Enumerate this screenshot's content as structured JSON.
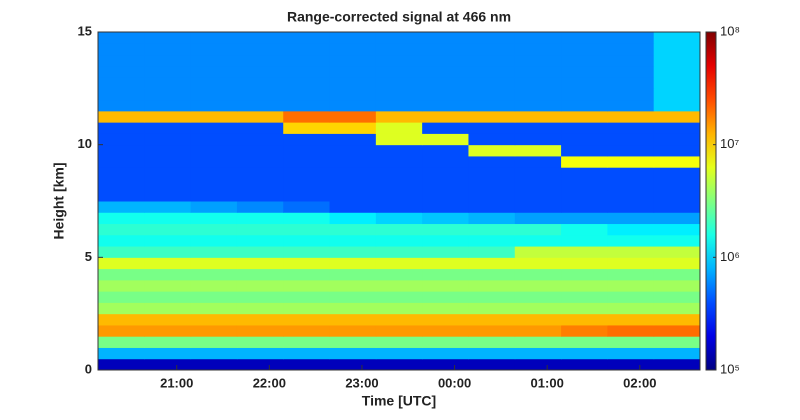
{
  "chart_data": {
    "type": "heatmap",
    "title": "Range-corrected signal at 466 nm",
    "x_label": "Time [UTC]",
    "y_label": "Height [km]",
    "xlim": [
      20.15,
      26.65
    ],
    "xticks": [
      {
        "value": 21,
        "label": "21:00"
      },
      {
        "value": 22,
        "label": "22:00"
      },
      {
        "value": 23,
        "label": "23:00"
      },
      {
        "value": 24,
        "label": "00:00"
      },
      {
        "value": 25,
        "label": "01:00"
      },
      {
        "value": 26,
        "label": "02:00"
      }
    ],
    "ylim": [
      0,
      15
    ],
    "yticks": [
      0,
      5,
      10,
      15
    ],
    "colorscale": "jet",
    "color_log": true,
    "clim": [
      100000.0,
      100000000.0
    ],
    "cticks": [
      {
        "value": 100000.0,
        "label": "10⁵"
      },
      {
        "value": 1000000.0,
        "label": "10⁶"
      },
      {
        "value": 10000000.0,
        "label": "10⁷"
      },
      {
        "value": 100000000.0,
        "label": "10⁸"
      }
    ],
    "x": [
      20.4,
      20.9,
      21.4,
      21.9,
      22.4,
      22.9,
      23.4,
      23.9,
      24.4,
      24.9,
      25.4,
      25.9,
      26.4
    ],
    "y": [
      0.25,
      0.75,
      1.25,
      1.75,
      2.25,
      2.75,
      3.25,
      3.75,
      4.25,
      4.75,
      5.25,
      5.75,
      6.25,
      6.75,
      7.25,
      7.75,
      8.25,
      8.75,
      9.25,
      9.75,
      10.25,
      10.75,
      11.25,
      11.75,
      12.25,
      12.75,
      13.25,
      13.75,
      14.25,
      14.75
    ],
    "z": [
      [
        150000.0,
        150000.0,
        150000.0,
        150000.0,
        150000.0,
        150000.0,
        150000.0,
        150000.0,
        150000.0,
        150000.0,
        150000.0,
        150000.0,
        150000.0
      ],
      [
        800000.0,
        800000.0,
        800000.0,
        800000.0,
        800000.0,
        800000.0,
        800000.0,
        800000.0,
        800000.0,
        800000.0,
        800000.0,
        800000.0,
        800000.0
      ],
      [
        3000000.0,
        3000000.0,
        3000000.0,
        3000000.0,
        3000000.0,
        3000000.0,
        3000000.0,
        3000000.0,
        3000000.0,
        3000000.0,
        3000000.0,
        3000000.0,
        3000000.0
      ],
      [
        15000000.0,
        15000000.0,
        15000000.0,
        15000000.0,
        15000000.0,
        15000000.0,
        15000000.0,
        15000000.0,
        15000000.0,
        15000000.0,
        18000000.0,
        20000000.0,
        20000000.0
      ],
      [
        12000000.0,
        12000000.0,
        12000000.0,
        12000000.0,
        12000000.0,
        12000000.0,
        12000000.0,
        12000000.0,
        12000000.0,
        12000000.0,
        12000000.0,
        12000000.0,
        12000000.0
      ],
      [
        4000000.0,
        4000000.0,
        4000000.0,
        4000000.0,
        4000000.0,
        4000000.0,
        4000000.0,
        4000000.0,
        4000000.0,
        4000000.0,
        4000000.0,
        4000000.0,
        4000000.0
      ],
      [
        3000000.0,
        3000000.0,
        3000000.0,
        3000000.0,
        3000000.0,
        3000000.0,
        3000000.0,
        3000000.0,
        3000000.0,
        3000000.0,
        3000000.0,
        3000000.0,
        3000000.0
      ],
      [
        4000000.0,
        4000000.0,
        4000000.0,
        4000000.0,
        4000000.0,
        4000000.0,
        4000000.0,
        4000000.0,
        4000000.0,
        4000000.0,
        4000000.0,
        4000000.0,
        4000000.0
      ],
      [
        3000000.0,
        3000000.0,
        3000000.0,
        3000000.0,
        3000000.0,
        3000000.0,
        3000000.0,
        3000000.0,
        3000000.0,
        3000000.0,
        3000000.0,
        3000000.0,
        3000000.0
      ],
      [
        6000000.0,
        6000000.0,
        6000000.0,
        6000000.0,
        6000000.0,
        6000000.0,
        6000000.0,
        6000000.0,
        6000000.0,
        6000000.0,
        6000000.0,
        6000000.0,
        6000000.0
      ],
      [
        2000000.0,
        2000000.0,
        2000000.0,
        2000000.0,
        2000000.0,
        2000000.0,
        2000000.0,
        2000000.0,
        2000000.0,
        5000000.0,
        5000000.0,
        5000000.0,
        5000000.0
      ],
      [
        1500000.0,
        1500000.0,
        1500000.0,
        1500000.0,
        1500000.0,
        1500000.0,
        1500000.0,
        1500000.0,
        1500000.0,
        1500000.0,
        1500000.0,
        1500000.0,
        1500000.0
      ],
      [
        1800000.0,
        1800000.0,
        1800000.0,
        1800000.0,
        1800000.0,
        1800000.0,
        1800000.0,
        1800000.0,
        1800000.0,
        1800000.0,
        1500000.0,
        1200000.0,
        1200000.0
      ],
      [
        1500000.0,
        1500000.0,
        1500000.0,
        1500000.0,
        1500000.0,
        1200000.0,
        1000000.0,
        900000.0,
        800000.0,
        700000.0,
        700000.0,
        700000.0,
        700000.0
      ],
      [
        800000.0,
        800000.0,
        700000.0,
        600000.0,
        500000.0,
        400000.0,
        400000.0,
        400000.0,
        400000.0,
        400000.0,
        400000.0,
        400000.0,
        400000.0
      ],
      [
        400000.0,
        400000.0,
        400000.0,
        400000.0,
        400000.0,
        400000.0,
        400000.0,
        400000.0,
        400000.0,
        400000.0,
        400000.0,
        400000.0,
        400000.0
      ],
      [
        400000.0,
        400000.0,
        400000.0,
        400000.0,
        400000.0,
        400000.0,
        400000.0,
        400000.0,
        400000.0,
        400000.0,
        400000.0,
        400000.0,
        400000.0
      ],
      [
        400000.0,
        400000.0,
        400000.0,
        400000.0,
        400000.0,
        400000.0,
        400000.0,
        400000.0,
        400000.0,
        400000.0,
        400000.0,
        400000.0,
        400000.0
      ],
      [
        400000.0,
        400000.0,
        400000.0,
        400000.0,
        400000.0,
        400000.0,
        400000.0,
        400000.0,
        400000.0,
        400000.0,
        7000000.0,
        7000000.0,
        7000000.0
      ],
      [
        400000.0,
        400000.0,
        400000.0,
        400000.0,
        400000.0,
        400000.0,
        400000.0,
        400000.0,
        6000000.0,
        6000000.0,
        400000.0,
        400000.0,
        400000.0
      ],
      [
        400000.0,
        400000.0,
        400000.0,
        400000.0,
        400000.0,
        400000.0,
        6000000.0,
        6000000.0,
        400000.0,
        400000.0,
        400000.0,
        400000.0,
        400000.0
      ],
      [
        400000.0,
        400000.0,
        400000.0,
        400000.0,
        10000000.0,
        10000000.0,
        6000000.0,
        400000.0,
        400000.0,
        400000.0,
        400000.0,
        400000.0,
        400000.0
      ],
      [
        12000000.0,
        12000000.0,
        12000000.0,
        12000000.0,
        20000000.0,
        20000000.0,
        12000000.0,
        12000000.0,
        12000000.0,
        12000000.0,
        12000000.0,
        12000000.0,
        12000000.0
      ],
      [
        600000.0,
        600000.0,
        600000.0,
        600000.0,
        600000.0,
        600000.0,
        600000.0,
        600000.0,
        600000.0,
        600000.0,
        600000.0,
        600000.0,
        1000000.0
      ],
      [
        600000.0,
        600000.0,
        600000.0,
        600000.0,
        600000.0,
        600000.0,
        600000.0,
        600000.0,
        600000.0,
        600000.0,
        600000.0,
        600000.0,
        1000000.0
      ],
      [
        600000.0,
        600000.0,
        600000.0,
        600000.0,
        600000.0,
        600000.0,
        600000.0,
        600000.0,
        600000.0,
        600000.0,
        600000.0,
        600000.0,
        1000000.0
      ],
      [
        600000.0,
        600000.0,
        600000.0,
        600000.0,
        600000.0,
        600000.0,
        600000.0,
        600000.0,
        600000.0,
        600000.0,
        600000.0,
        600000.0,
        1000000.0
      ],
      [
        600000.0,
        600000.0,
        600000.0,
        600000.0,
        600000.0,
        600000.0,
        600000.0,
        600000.0,
        600000.0,
        600000.0,
        600000.0,
        600000.0,
        1000000.0
      ],
      [
        600000.0,
        600000.0,
        600000.0,
        600000.0,
        600000.0,
        600000.0,
        600000.0,
        600000.0,
        600000.0,
        600000.0,
        600000.0,
        600000.0,
        1000000.0
      ],
      [
        600000.0,
        600000.0,
        600000.0,
        600000.0,
        600000.0,
        600000.0,
        600000.0,
        600000.0,
        600000.0,
        600000.0,
        600000.0,
        600000.0,
        1000000.0
      ]
    ]
  }
}
